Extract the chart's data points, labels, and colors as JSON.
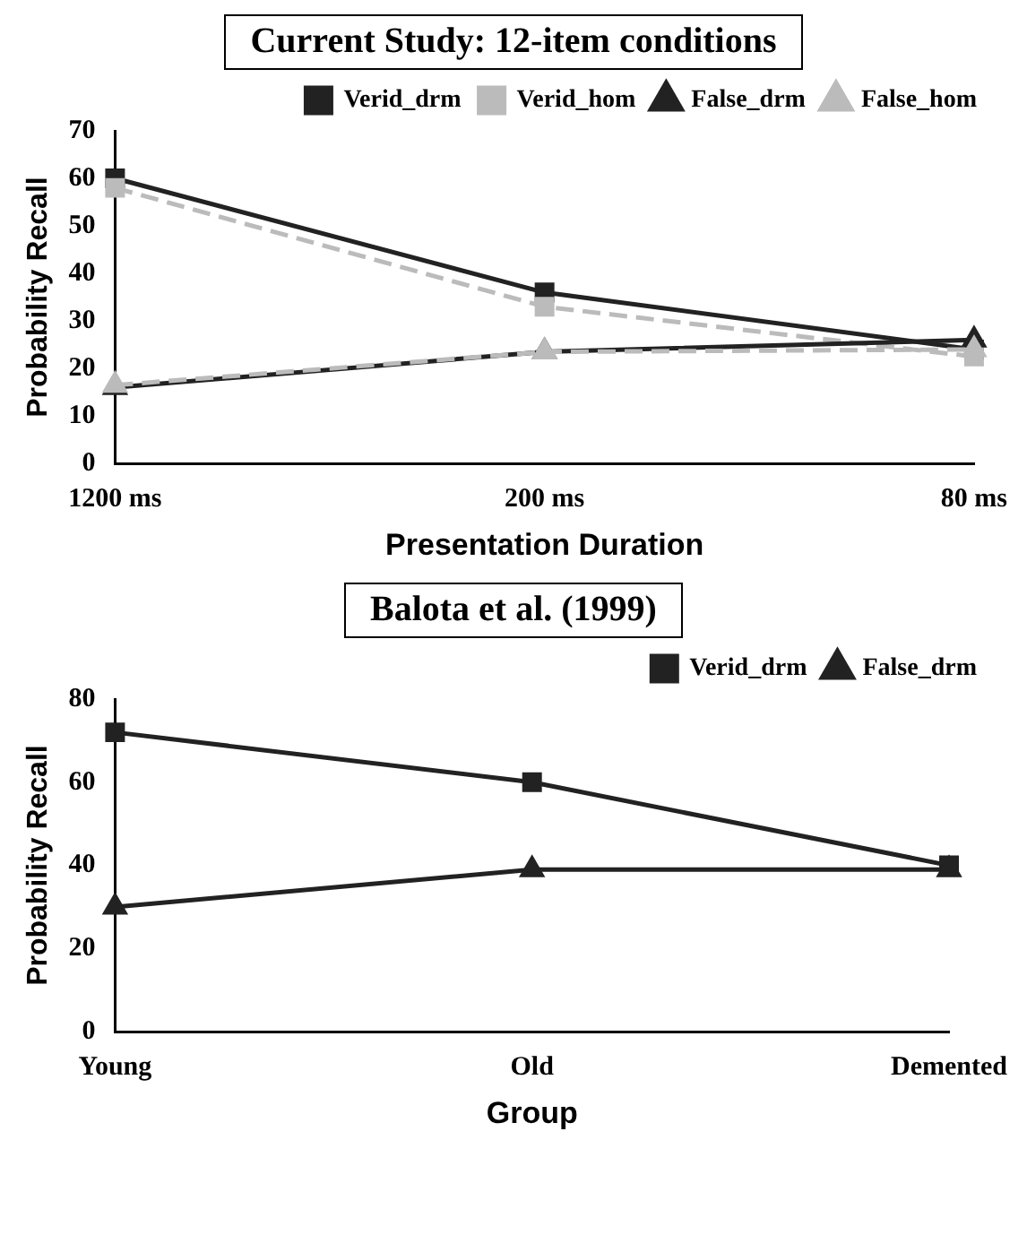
{
  "chart_data": [
    {
      "type": "line",
      "title": "Current Study: 12-item conditions",
      "xlabel": "Presentation Duration",
      "ylabel": "Probability Recall",
      "categories": [
        "1200 ms",
        "200 ms",
        "80 ms"
      ],
      "ylim": [
        0,
        70
      ],
      "yticks": [
        0,
        10,
        20,
        30,
        40,
        50,
        60,
        70
      ],
      "grid": false,
      "legend": "top right",
      "series": [
        {
          "name": "Verid_drm",
          "color": "#222222",
          "marker": "square",
          "line_style": "solid",
          "values": [
            60,
            36,
            24
          ]
        },
        {
          "name": "Verid_hom",
          "color": "#bbbbbb",
          "marker": "square",
          "line_style": "dashed",
          "values": [
            58,
            33,
            22.5
          ]
        },
        {
          "name": "False_drm",
          "color": "#222222",
          "marker": "triangle",
          "line_style": "solid",
          "values": [
            16,
            23.5,
            26
          ]
        },
        {
          "name": "False_hom",
          "color": "#bbbbbb",
          "marker": "triangle",
          "line_style": "dashed",
          "values": [
            16.5,
            23.5,
            24
          ]
        }
      ]
    },
    {
      "type": "line",
      "title": "Balota et al. (1999)",
      "xlabel": "Group",
      "ylabel": "Probability Recall",
      "categories": [
        "Young",
        "Old",
        "Demented"
      ],
      "ylim": [
        0,
        80
      ],
      "yticks": [
        0,
        20,
        40,
        60,
        80
      ],
      "grid": false,
      "legend": "top right",
      "series": [
        {
          "name": "Verid_drm",
          "color": "#222222",
          "marker": "square",
          "line_style": "solid",
          "values": [
            72,
            60,
            40
          ]
        },
        {
          "name": "False_drm",
          "color": "#222222",
          "marker": "triangle",
          "line_style": "solid",
          "values": [
            30,
            39,
            39
          ]
        }
      ]
    }
  ]
}
